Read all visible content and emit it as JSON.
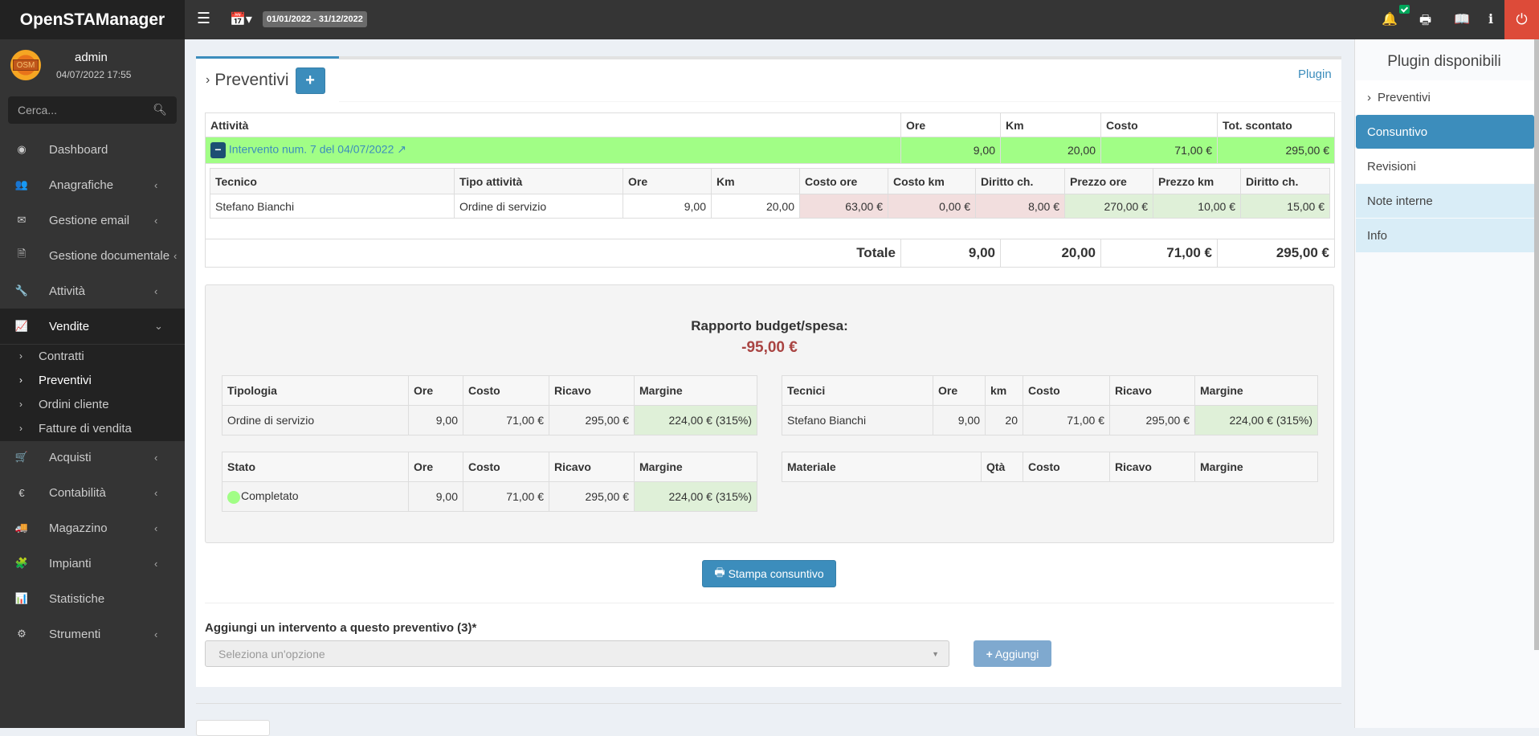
{
  "app": {
    "title": "OpenSTAManager",
    "date_range": "01/01/2022 - 31/12/2022"
  },
  "user": {
    "name": "admin",
    "datetime": "04/07/2022 17:55",
    "avatar_text": "OSM"
  },
  "search": {
    "placeholder": "Cerca..."
  },
  "sidebar": {
    "items": [
      {
        "label": "Dashboard",
        "icon": "dashboard-icon",
        "glyph": "◉",
        "chev": false
      },
      {
        "label": "Anagrafiche",
        "icon": "users-icon",
        "glyph": "👥",
        "chev": true
      },
      {
        "label": "Gestione email",
        "icon": "envelope-icon",
        "glyph": "✉",
        "chev": true
      },
      {
        "label": "Gestione documentale",
        "icon": "file-icon",
        "glyph": "🗎",
        "chev": true
      },
      {
        "label": "Attività",
        "icon": "wrench-icon",
        "glyph": "🔧",
        "chev": true
      },
      {
        "label": "Vendite",
        "icon": "line-chart-icon",
        "glyph": "📈",
        "chev": true,
        "open": true
      },
      {
        "label": "Acquisti",
        "icon": "cart-icon",
        "glyph": "🛒",
        "chev": true
      },
      {
        "label": "Contabilità",
        "icon": "euro-icon",
        "glyph": "€",
        "chev": true
      },
      {
        "label": "Magazzino",
        "icon": "truck-icon",
        "glyph": "🚚",
        "chev": true
      },
      {
        "label": "Impianti",
        "icon": "puzzle-icon",
        "glyph": "🧩",
        "chev": true
      },
      {
        "label": "Statistiche",
        "icon": "bar-chart-icon",
        "glyph": "📊",
        "chev": false
      },
      {
        "label": "Strumenti",
        "icon": "cog-icon",
        "glyph": "⚙",
        "chev": true
      }
    ],
    "subitems": [
      {
        "label": "Contratti"
      },
      {
        "label": "Preventivi",
        "current": true
      },
      {
        "label": "Ordini cliente"
      },
      {
        "label": "Fatture di vendita"
      }
    ]
  },
  "module": {
    "tab": "Preventivi",
    "plugin_link": "Plugin"
  },
  "activities": {
    "headers": [
      "Attività",
      "Ore",
      "Km",
      "Costo",
      "Tot. scontato"
    ],
    "row": {
      "label": "Intervento num. 7 del 04/07/2022",
      "ore": "9,00",
      "km": "20,00",
      "costo": "71,00 €",
      "tot": "295,00 €"
    },
    "detail_headers": [
      "Tecnico",
      "Tipo attività",
      "Ore",
      "Km",
      "Costo ore",
      "Costo km",
      "Diritto ch.",
      "Prezzo ore",
      "Prezzo km",
      "Diritto ch."
    ],
    "detail_row": [
      "Stefano Bianchi",
      "Ordine di servizio",
      "9,00",
      "20,00",
      "63,00 €",
      "0,00 €",
      "8,00 €",
      "270,00 €",
      "10,00 €",
      "15,00 €"
    ],
    "total": {
      "label": "Totale",
      "ore": "9,00",
      "km": "20,00",
      "costo": "71,00 €",
      "tot": "295,00 €"
    }
  },
  "budget": {
    "title": "Rapporto budget/spesa:",
    "value": "-95,00 €",
    "value_color": "#a94442",
    "tipologia": {
      "headers": [
        "Tipologia",
        "Ore",
        "Costo",
        "Ricavo",
        "Margine"
      ],
      "rows": [
        [
          "Ordine di servizio",
          "9,00",
          "71,00 €",
          "295,00 €",
          "224,00 € (315%)"
        ]
      ]
    },
    "tecnici": {
      "headers": [
        "Tecnici",
        "Ore",
        "km",
        "Costo",
        "Ricavo",
        "Margine"
      ],
      "rows": [
        [
          "Stefano Bianchi",
          "9,00",
          "20",
          "71,00 €",
          "295,00 €",
          "224,00 € (315%)"
        ]
      ]
    },
    "stato": {
      "headers": [
        "Stato",
        "Ore",
        "Costo",
        "Ricavo",
        "Margine"
      ],
      "rows": [
        [
          "Completato",
          "9,00",
          "71,00 €",
          "295,00 €",
          "224,00 € (315%)"
        ]
      ],
      "status_color": "#a1fe86"
    },
    "materiale": {
      "headers": [
        "Materiale",
        "Qtà",
        "Costo",
        "Ricavo",
        "Margine"
      ],
      "rows": []
    }
  },
  "actions": {
    "print": "Stampa consuntivo",
    "add_label": "Aggiungi un intervento a questo preventivo (3)*",
    "select_placeholder": "Seleziona un'opzione",
    "add_button": "Aggiungi"
  },
  "plugins": {
    "title": "Plugin disponibili",
    "items": [
      {
        "label": "Preventivi",
        "style": "back"
      },
      {
        "label": "Consuntivo",
        "style": "selected"
      },
      {
        "label": "Revisioni",
        "style": "plain"
      },
      {
        "label": "Note interne",
        "style": "info"
      },
      {
        "label": "Info",
        "style": "info"
      }
    ]
  },
  "colors": {
    "accent": "#3c8dbc",
    "danger": "#dd4b39",
    "row_green": "#a1fe86",
    "cost_pink": "#f2dede",
    "price_green": "#dff0d8"
  }
}
